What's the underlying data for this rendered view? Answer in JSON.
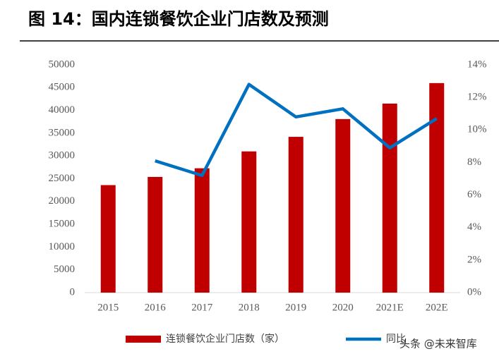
{
  "chart_data": {
    "type": "bar-line",
    "title": "图 14：国内连锁餐饮企业门店数及预测",
    "categories": [
      "2015",
      "2016",
      "2017",
      "2018",
      "2019",
      "2020",
      "2021E",
      "202E"
    ],
    "series": [
      {
        "name": "连锁餐饮企业门店数（家）",
        "type": "bar",
        "color": "#c00000",
        "values": [
          23600,
          25400,
          27300,
          31000,
          34200,
          38100,
          41500,
          46000
        ]
      },
      {
        "name": "同比",
        "type": "line",
        "axis": "y2",
        "color": "#0070c0",
        "values": [
          null,
          8.1,
          7.2,
          12.8,
          10.8,
          11.3,
          8.9,
          10.7
        ]
      }
    ],
    "ylim": [
      0,
      50000
    ],
    "yticks": [
      0,
      5000,
      10000,
      15000,
      20000,
      25000,
      30000,
      35000,
      40000,
      45000,
      50000
    ],
    "y2lim": [
      0,
      14
    ],
    "y2ticks": [
      {
        "value": 0,
        "label": "0%"
      },
      {
        "value": 2,
        "label": "2%"
      },
      {
        "value": 4,
        "label": "4%"
      },
      {
        "value": 6,
        "label": "6%"
      },
      {
        "value": 8,
        "label": "8%"
      },
      {
        "value": 10,
        "label": "10%"
      },
      {
        "value": 12,
        "label": "12%"
      },
      {
        "value": 14,
        "label": "14%"
      }
    ],
    "grid": false,
    "legend": "bottom",
    "watermark": "头条 @未来智库"
  }
}
